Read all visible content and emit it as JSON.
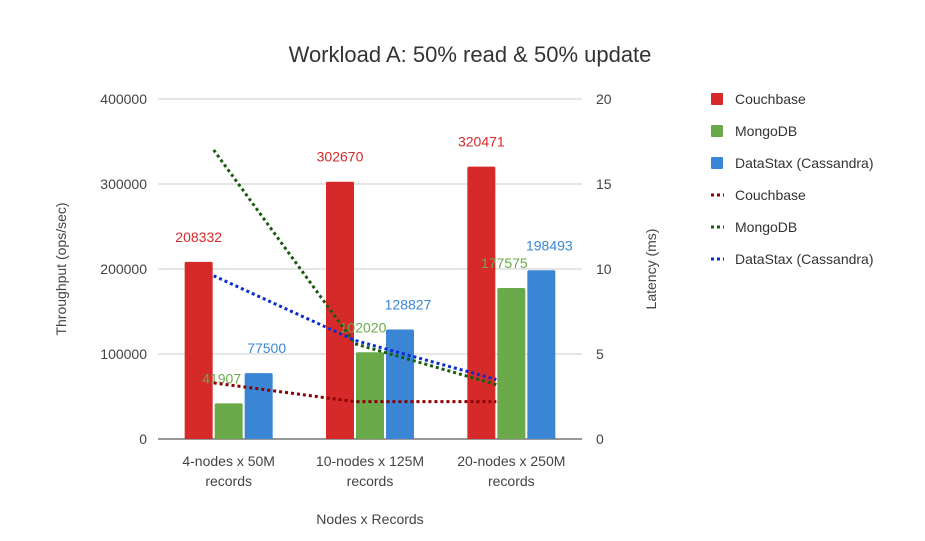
{
  "chart_data": {
    "type": "bar+line",
    "title": "Workload A: 50% read & 50% update",
    "xlabel": "Nodes x Records",
    "ylabel_left": "Throughput (ops/sec)",
    "ylabel_right": "Latency (ms)",
    "categories": [
      [
        "4-nodes x 50M",
        "records"
      ],
      [
        "10-nodes x 125M",
        "records"
      ],
      [
        "20-nodes x 250M",
        "records"
      ]
    ],
    "y_left_ticks": [
      "0",
      "100000",
      "200000",
      "300000",
      "400000"
    ],
    "y_right_ticks": [
      "0",
      "5",
      "10",
      "15",
      "20"
    ],
    "ylim_left": [
      0,
      400000
    ],
    "ylim_right": [
      0,
      20
    ],
    "grid": true,
    "legend_position": "right",
    "bar_series": [
      {
        "name": "Couchbase",
        "color": "#d62a2a",
        "values": [
          208332,
          302670,
          320471
        ],
        "labels": [
          "208332",
          "302670",
          "320471"
        ]
      },
      {
        "name": "MongoDB",
        "color": "#6aaa4a",
        "values": [
          41907,
          102020,
          177575
        ],
        "labels": [
          "41907",
          "102020",
          "177575"
        ]
      },
      {
        "name": "DataStax (Cassandra)",
        "color": "#3a86d4",
        "values": [
          77500,
          128827,
          198493
        ],
        "labels": [
          "77500",
          "128827",
          "198493"
        ]
      }
    ],
    "line_series": [
      {
        "name": "Couchbase",
        "color": "#8b0000",
        "style": "dotted",
        "values": [
          3.3,
          2.2,
          2.2
        ]
      },
      {
        "name": "MongoDB",
        "color": "#1a5c0f",
        "style": "dotted",
        "values": [
          17.0,
          5.6,
          3.2
        ]
      },
      {
        "name": "DataStax (Cassandra)",
        "color": "#0b2ccf",
        "style": "dotted",
        "values": [
          9.6,
          5.8,
          3.5
        ]
      }
    ]
  }
}
